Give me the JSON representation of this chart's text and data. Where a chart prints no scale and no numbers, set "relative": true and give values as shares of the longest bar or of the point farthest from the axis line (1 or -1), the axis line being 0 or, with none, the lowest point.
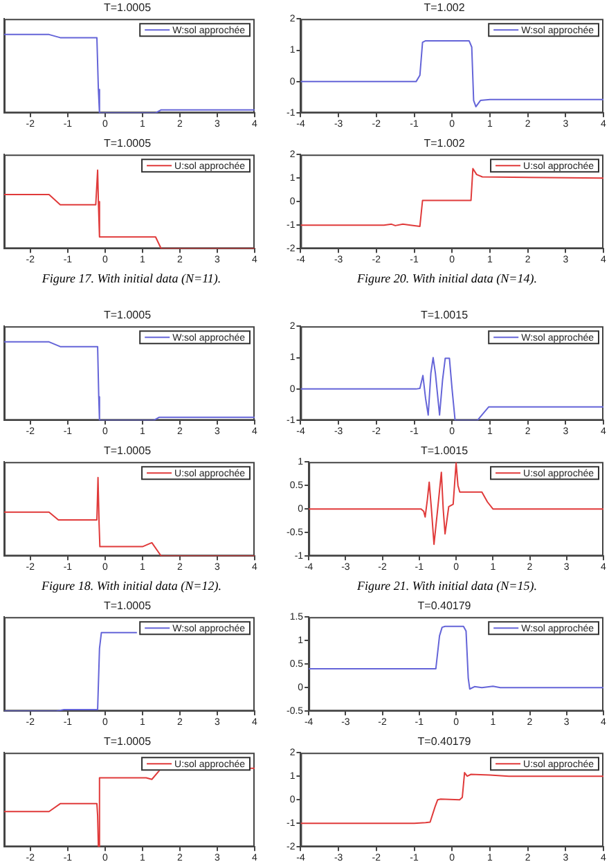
{
  "chart_data": [
    {
      "type": "line",
      "title": "T=1.0005",
      "xlim": [
        -2.7,
        4
      ],
      "xticks": [
        -2,
        -1,
        0,
        1,
        2,
        3,
        4
      ],
      "relative": true,
      "tick_labels": "x",
      "legend": "top right",
      "marker": "none",
      "series": [
        {
          "name": "W:sol approchée",
          "color": "#6464d8",
          "x": [
            -2.7,
            -1.5,
            -1.2,
            -0.22,
            -0.18,
            -0.15,
            1.35,
            1.5,
            4
          ],
          "values": [
            1,
            1,
            0.96,
            0.96,
            0.3,
            0,
            0,
            0.04,
            0.04
          ]
        }
      ]
    },
    {
      "type": "line",
      "title": "T=1.0005",
      "xlim": [
        -2.7,
        4
      ],
      "xticks": [
        -2,
        -1,
        0,
        1,
        2,
        3,
        4
      ],
      "relative": true,
      "tick_labels": "x",
      "legend": "top right",
      "marker": "none",
      "annotations": [
        "Figure 17. With initial data (N=11)."
      ],
      "series": [
        {
          "name": "U:sol approchée",
          "color": "#e03a3a",
          "x": [
            -2.7,
            -1.5,
            -1.2,
            -0.25,
            -0.2,
            -0.18,
            -0.15,
            1.35,
            1.5,
            4
          ],
          "values": [
            0.69,
            0.69,
            0.56,
            0.56,
            1,
            0.6,
            0.15,
            0.15,
            0,
            0
          ]
        }
      ]
    },
    {
      "type": "line",
      "title": "T=1.0005",
      "xlim": [
        -2.7,
        4
      ],
      "xticks": [
        -2,
        -1,
        0,
        1,
        2,
        3,
        4
      ],
      "relative": true,
      "tick_labels": "x",
      "legend": "top right",
      "marker": "none",
      "series": [
        {
          "name": "W:sol approchée",
          "color": "#6464d8",
          "x": [
            -2.7,
            -1.5,
            -1.2,
            -0.2,
            -0.17,
            -0.15,
            1.3,
            1.45,
            4
          ],
          "values": [
            1,
            1,
            0.94,
            0.94,
            0.3,
            0,
            0,
            0.04,
            0.04
          ]
        }
      ]
    },
    {
      "type": "line",
      "title": "T=1.0005",
      "xlim": [
        -2.7,
        4
      ],
      "xticks": [
        -2,
        -1,
        0,
        1,
        2,
        3,
        4
      ],
      "relative": true,
      "tick_labels": "x",
      "legend": "top right",
      "marker": "none",
      "annotations": [
        "Figure 18. With initial data (N=12)."
      ],
      "series": [
        {
          "name": "U:sol approchée",
          "color": "#e03a3a",
          "x": [
            -2.7,
            -1.5,
            -1.25,
            -0.22,
            -0.19,
            -0.16,
            -0.14,
            1.0,
            1.25,
            1.5,
            4
          ],
          "values": [
            0.56,
            0.56,
            0.46,
            0.46,
            1,
            0.4,
            0.12,
            0.12,
            0.17,
            0,
            0
          ]
        }
      ]
    },
    {
      "type": "line",
      "title": "T=1.0005",
      "xlim": [
        -2.7,
        4
      ],
      "xticks": [
        -2,
        -1,
        0,
        1,
        2,
        3,
        4
      ],
      "relative": true,
      "tick_labels": "x",
      "legend": "top right",
      "marker": "none",
      "series": [
        {
          "name": "W:sol approchée",
          "color": "#6464d8",
          "x": [
            -2.7,
            -1.3,
            -1.1,
            -0.2,
            -0.15,
            -0.1,
            0.85
          ],
          "values": [
            0,
            0,
            0.02,
            0.02,
            0.8,
            1,
            1
          ]
        }
      ]
    },
    {
      "type": "line",
      "title": "T=1.0005",
      "xlim": [
        -2.7,
        4
      ],
      "xticks": [
        -2,
        -1,
        0,
        1,
        2,
        3,
        4
      ],
      "relative": true,
      "tick_labels": "x",
      "legend": "top right",
      "marker": "none",
      "series": [
        {
          "name": "U:sol approchée",
          "color": "#e03a3a",
          "x": [
            -2.7,
            -1.5,
            -1.2,
            -0.22,
            -0.2,
            -0.18,
            -0.15,
            1.1,
            1.25,
            1.5,
            4
          ],
          "values": [
            0.45,
            0.45,
            0.55,
            0.55,
            0.4,
            0,
            0.88,
            0.88,
            0.86,
            1,
            1
          ]
        }
      ]
    },
    {
      "type": "line",
      "title": "T=1.002",
      "xlim": [
        -4,
        4
      ],
      "xticks": [
        -4,
        -3,
        -2,
        -1,
        0,
        1,
        2,
        3,
        4
      ],
      "ylim": [
        -1,
        2
      ],
      "yticks": [
        -1,
        0,
        1,
        2
      ],
      "legend": "top right",
      "marker": "none",
      "series": [
        {
          "name": "W:sol approchée",
          "color": "#6464d8",
          "x": [
            -4,
            -0.95,
            -0.85,
            -0.78,
            -0.7,
            0.45,
            0.52,
            0.57,
            0.63,
            0.75,
            1,
            4
          ],
          "values": [
            0,
            0,
            0.2,
            1.25,
            1.3,
            1.3,
            1.1,
            -0.6,
            -0.8,
            -0.6,
            -0.57,
            -0.57
          ]
        }
      ]
    },
    {
      "type": "line",
      "title": "T=1.002",
      "xlim": [
        -4,
        4
      ],
      "xticks": [
        -4,
        -3,
        -2,
        -1,
        0,
        1,
        2,
        3,
        4
      ],
      "ylim": [
        -2,
        2
      ],
      "yticks": [
        -2,
        -1,
        0,
        1,
        2
      ],
      "legend": "top right",
      "marker": "none",
      "annotations": [
        "Figure 20. With initial data (N=14)."
      ],
      "series": [
        {
          "name": "U:sol approchée",
          "color": "#e03a3a",
          "x": [
            -4,
            -1.8,
            -1.6,
            -1.5,
            -1.3,
            -1.1,
            -0.85,
            -0.78,
            0.5,
            0.55,
            0.65,
            0.8,
            4
          ],
          "values": [
            -1,
            -1,
            -0.96,
            -1.02,
            -0.96,
            -1,
            -1.05,
            0.05,
            0.05,
            1.4,
            1.15,
            1.05,
            1
          ]
        }
      ]
    },
    {
      "type": "line",
      "title": "T=1.0015",
      "xlim": [
        -4,
        4
      ],
      "xticks": [
        -4,
        -3,
        -2,
        -1,
        0,
        1,
        2,
        3,
        4
      ],
      "ylim": [
        -1,
        2
      ],
      "yticks": [
        -1,
        0,
        1,
        2
      ],
      "legend": "top right",
      "marker": "none",
      "series": [
        {
          "name": "W:sol approchée",
          "color": "#6464d8",
          "x": [
            -4,
            -0.95,
            -0.85,
            -0.77,
            -0.7,
            -0.63,
            -0.56,
            -0.5,
            -0.44,
            -0.33,
            -0.25,
            -0.18,
            -0.07,
            0,
            0.08,
            0.67,
            0.97,
            4
          ],
          "values": [
            0,
            0,
            0.02,
            0.43,
            -0.3,
            -0.83,
            0.5,
            1,
            0.5,
            -0.83,
            0.3,
            0.98,
            0.98,
            0,
            -1,
            -1,
            -0.57,
            -0.57
          ]
        }
      ]
    },
    {
      "type": "line",
      "title": "T=1.0015",
      "xlim": [
        -4,
        4
      ],
      "xticks": [
        -4,
        -3,
        -2,
        -1,
        0,
        1,
        2,
        3,
        4
      ],
      "ylim": [
        -1,
        1
      ],
      "yticks": [
        -1,
        -0.5,
        0,
        0.5,
        1
      ],
      "legend": "top right",
      "marker": "none",
      "annotations": [
        "Figure 21. With initial data (N=15)."
      ],
      "series": [
        {
          "name": "U:sol approchée",
          "color": "#e03a3a",
          "x": [
            -4,
            -0.95,
            -0.88,
            -0.84,
            -0.78,
            -0.73,
            -0.67,
            -0.6,
            -0.5,
            -0.4,
            -0.35,
            -0.3,
            -0.2,
            -0.08,
            0,
            0.05,
            0.1,
            0.7,
            0.85,
            1,
            4
          ],
          "values": [
            0,
            0,
            -0.05,
            -0.17,
            0.2,
            0.57,
            0,
            -0.75,
            0,
            0.78,
            0,
            -0.53,
            0.05,
            0.1,
            0.98,
            0.5,
            0.36,
            0.36,
            0.15,
            0,
            0
          ]
        }
      ]
    },
    {
      "type": "line",
      "title": "T=0.40179",
      "xlim": [
        -4,
        4
      ],
      "xticks": [
        -4,
        -3,
        -2,
        -1,
        0,
        1,
        2,
        3,
        4
      ],
      "ylim": [
        -0.5,
        1.5
      ],
      "yticks": [
        -0.5,
        0,
        0.5,
        1,
        1.5
      ],
      "legend": "top right",
      "marker": "none",
      "series": [
        {
          "name": "W:sol approchée",
          "color": "#6464d8",
          "x": [
            -4,
            -0.55,
            -0.45,
            -0.38,
            -0.3,
            0.2,
            0.27,
            0.33,
            0.37,
            0.5,
            0.7,
            1,
            1.2,
            4
          ],
          "values": [
            0.4,
            0.4,
            1.1,
            1.28,
            1.3,
            1.3,
            1.2,
            0.2,
            -0.03,
            0.02,
            0,
            0.03,
            0,
            0
          ]
        }
      ]
    },
    {
      "type": "line",
      "title": "T=0.40179",
      "xlim": [
        -4,
        4
      ],
      "xticks": [
        -4,
        -3,
        -2,
        -1,
        0,
        1,
        2,
        3,
        4
      ],
      "ylim": [
        -2,
        2
      ],
      "yticks": [
        -2,
        -1,
        0,
        1,
        2
      ],
      "legend": "top right",
      "marker": "none",
      "series": [
        {
          "name": "U:sol approchée",
          "color": "#e03a3a",
          "x": [
            -4,
            -1,
            -0.7,
            -0.58,
            -0.45,
            -0.38,
            -0.3,
            0.2,
            0.27,
            0.33,
            0.4,
            0.5,
            1,
            1.5,
            4
          ],
          "values": [
            -1,
            -1,
            -0.97,
            -0.95,
            -0.3,
            0,
            0.03,
            0,
            0.1,
            1.15,
            1,
            1.08,
            1.05,
            1,
            1
          ]
        }
      ]
    }
  ]
}
